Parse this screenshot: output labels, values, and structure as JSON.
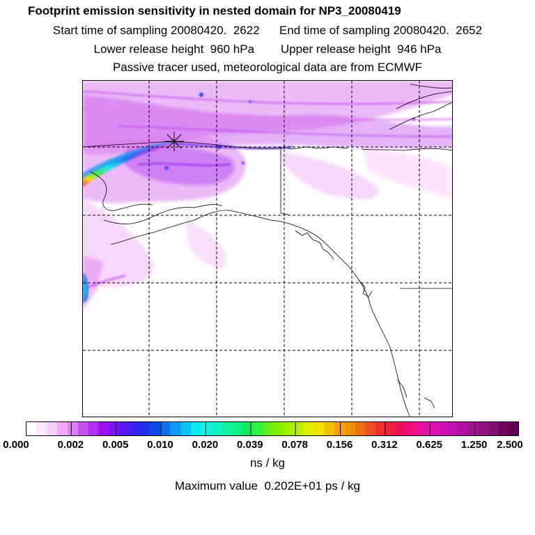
{
  "header": {
    "title": "Footprint emission sensitivity in nested domain for NP3_20080419",
    "sampling_line": "Start time of sampling 20080420.  2622      End time of sampling 20080420.  2652",
    "height_line": "Lower release height  960 hPa        Upper release height  946 hPa",
    "tracer_line": "Passive tracer used, meteorological data are from ECMWF"
  },
  "legend": {
    "labels": [
      "0.000",
      "0.002",
      "0.005",
      "0.010",
      "0.020",
      "0.039",
      "0.078",
      "0.156",
      "0.312",
      "0.625",
      "1.250",
      "2.500"
    ],
    "unit": "ns / kg",
    "max_value": "Maximum value  0.202E+01 ps / kg",
    "colors": [
      "#ffffff",
      "#fde6fd",
      "#f9ccf9",
      "#f0a8f5",
      "#dd80f0",
      "#c655ef",
      "#b030ee",
      "#9a10ef",
      "#7a14f0",
      "#5a18f0",
      "#3a20f0",
      "#2030f0",
      "#1048f0",
      "#1070f0",
      "#1098f0",
      "#10c0f0",
      "#10e8f0",
      "#10f0e0",
      "#10f0c0",
      "#10f0a0",
      "#10f080",
      "#10e860",
      "#30f040",
      "#60f020",
      "#80f000",
      "#a0f000",
      "#c0f000",
      "#e0f000",
      "#f0e000",
      "#f0c000",
      "#f0a000",
      "#f09000",
      "#f07010",
      "#f05020",
      "#f03030",
      "#f02040",
      "#f01060",
      "#f01080",
      "#e810a0",
      "#e010b0",
      "#d010b0",
      "#c010b0",
      "#b010a0",
      "#a01090",
      "#901080",
      "#801070",
      "#700060",
      "#600050"
    ]
  },
  "map": {
    "release_marker": "star-icon"
  }
}
